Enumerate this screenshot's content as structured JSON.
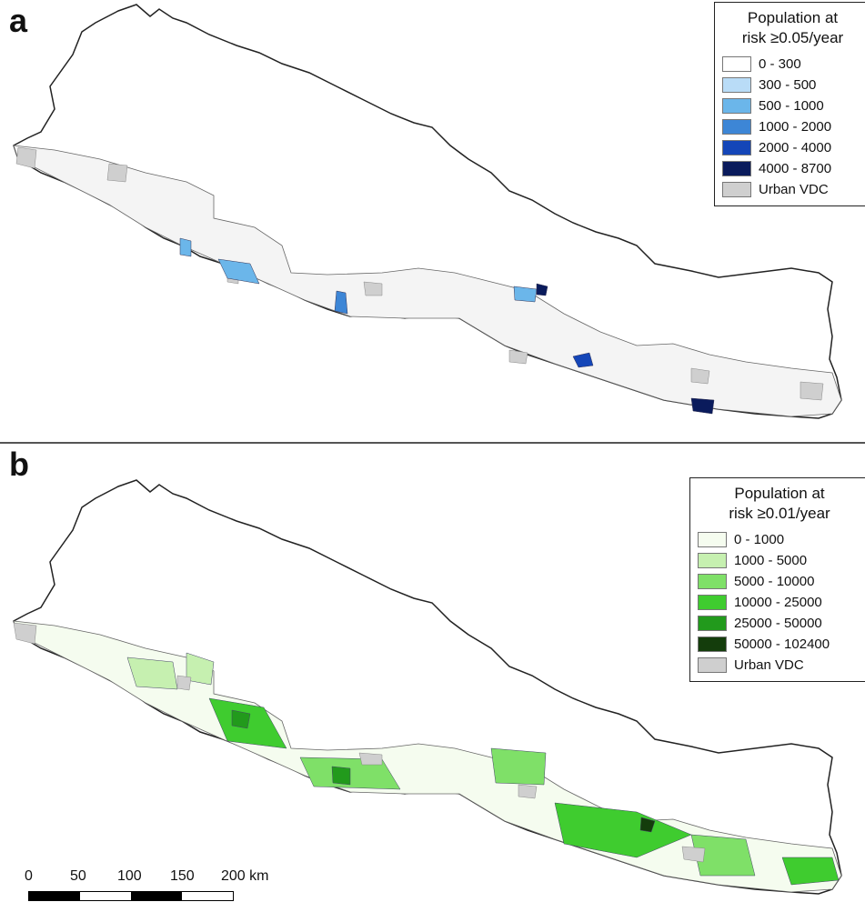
{
  "panels": [
    {
      "letter": "a",
      "legend": {
        "title_line1": "Population at",
        "title_line2": "risk ≥0.05/year",
        "items": [
          {
            "label": "0 - 300",
            "color": "#ffffff"
          },
          {
            "label": "300 - 500",
            "color": "#b9dcf7"
          },
          {
            "label": "500 - 1000",
            "color": "#6bb6ea"
          },
          {
            "label": "1000 - 2000",
            "color": "#3d86d6"
          },
          {
            "label": "2000 - 4000",
            "color": "#1446b8"
          },
          {
            "label": "4000 - 8700",
            "color": "#0a1b5c"
          },
          {
            "label": "Urban VDC",
            "color": "#cfcfcf"
          }
        ]
      }
    },
    {
      "letter": "b",
      "legend": {
        "title_line1": "Population at",
        "title_line2": "risk ≥0.01/year",
        "items": [
          {
            "label": "0 - 1000",
            "color": "#f5fcef"
          },
          {
            "label": "1000 - 5000",
            "color": "#c6f0b0"
          },
          {
            "label": "5000 - 10000",
            "color": "#7fe068"
          },
          {
            "label": "10000 - 25000",
            "color": "#3fcc2f"
          },
          {
            "label": "25000 - 50000",
            "color": "#229a1c"
          },
          {
            "label": "50000 - 102400",
            "color": "#143d0c"
          },
          {
            "label": "Urban VDC",
            "color": "#cfcfcf"
          }
        ]
      }
    }
  ],
  "scalebar": {
    "ticks": [
      "0",
      "50",
      "100",
      "150",
      "200 km"
    ]
  }
}
